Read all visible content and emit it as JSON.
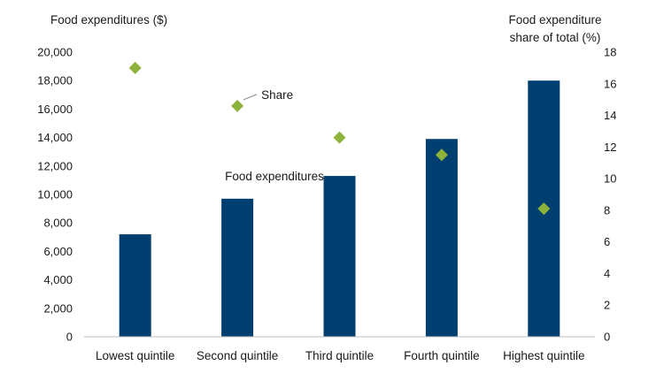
{
  "chart_data": {
    "type": "bar",
    "categories": [
      "Lowest quintile",
      "Second quintile",
      "Third quintile",
      "Fourth quintile",
      "Highest quintile"
    ],
    "series": [
      {
        "name": "Food expenditures",
        "type": "bar",
        "axis": "left",
        "color": "#003f6f",
        "values": [
          7200,
          9700,
          11300,
          13900,
          18000
        ]
      },
      {
        "name": "Share",
        "type": "scatter",
        "axis": "right",
        "color": "#8db33a",
        "values": [
          17.0,
          14.6,
          12.6,
          11.5,
          8.1
        ]
      }
    ],
    "y_left": {
      "label": "Food expenditures ($)",
      "ylim": [
        0,
        20000
      ],
      "ticks": [
        0,
        2000,
        4000,
        6000,
        8000,
        10000,
        12000,
        14000,
        16000,
        18000,
        20000
      ],
      "tick_labels": [
        "0",
        "2,000",
        "4,000",
        "6,000",
        "8,000",
        "10,000",
        "12,000",
        "14,000",
        "16,000",
        "18,000",
        "20,000"
      ]
    },
    "y_right": {
      "label_lines": [
        "Food expenditure",
        "share of total (%)"
      ],
      "ylim": [
        0,
        18
      ],
      "ticks": [
        0,
        2,
        4,
        6,
        8,
        10,
        12,
        14,
        16,
        18
      ],
      "tick_labels": [
        "0",
        "2",
        "4",
        "6",
        "8",
        "10",
        "12",
        "14",
        "16",
        "18"
      ]
    },
    "grid": false,
    "legend": "none",
    "annotations": [
      {
        "text": "Food expenditures",
        "target_series": "Food expenditures",
        "category_index": 1
      },
      {
        "text": "Share",
        "target_series": "Share",
        "category_index": 1
      }
    ]
  }
}
